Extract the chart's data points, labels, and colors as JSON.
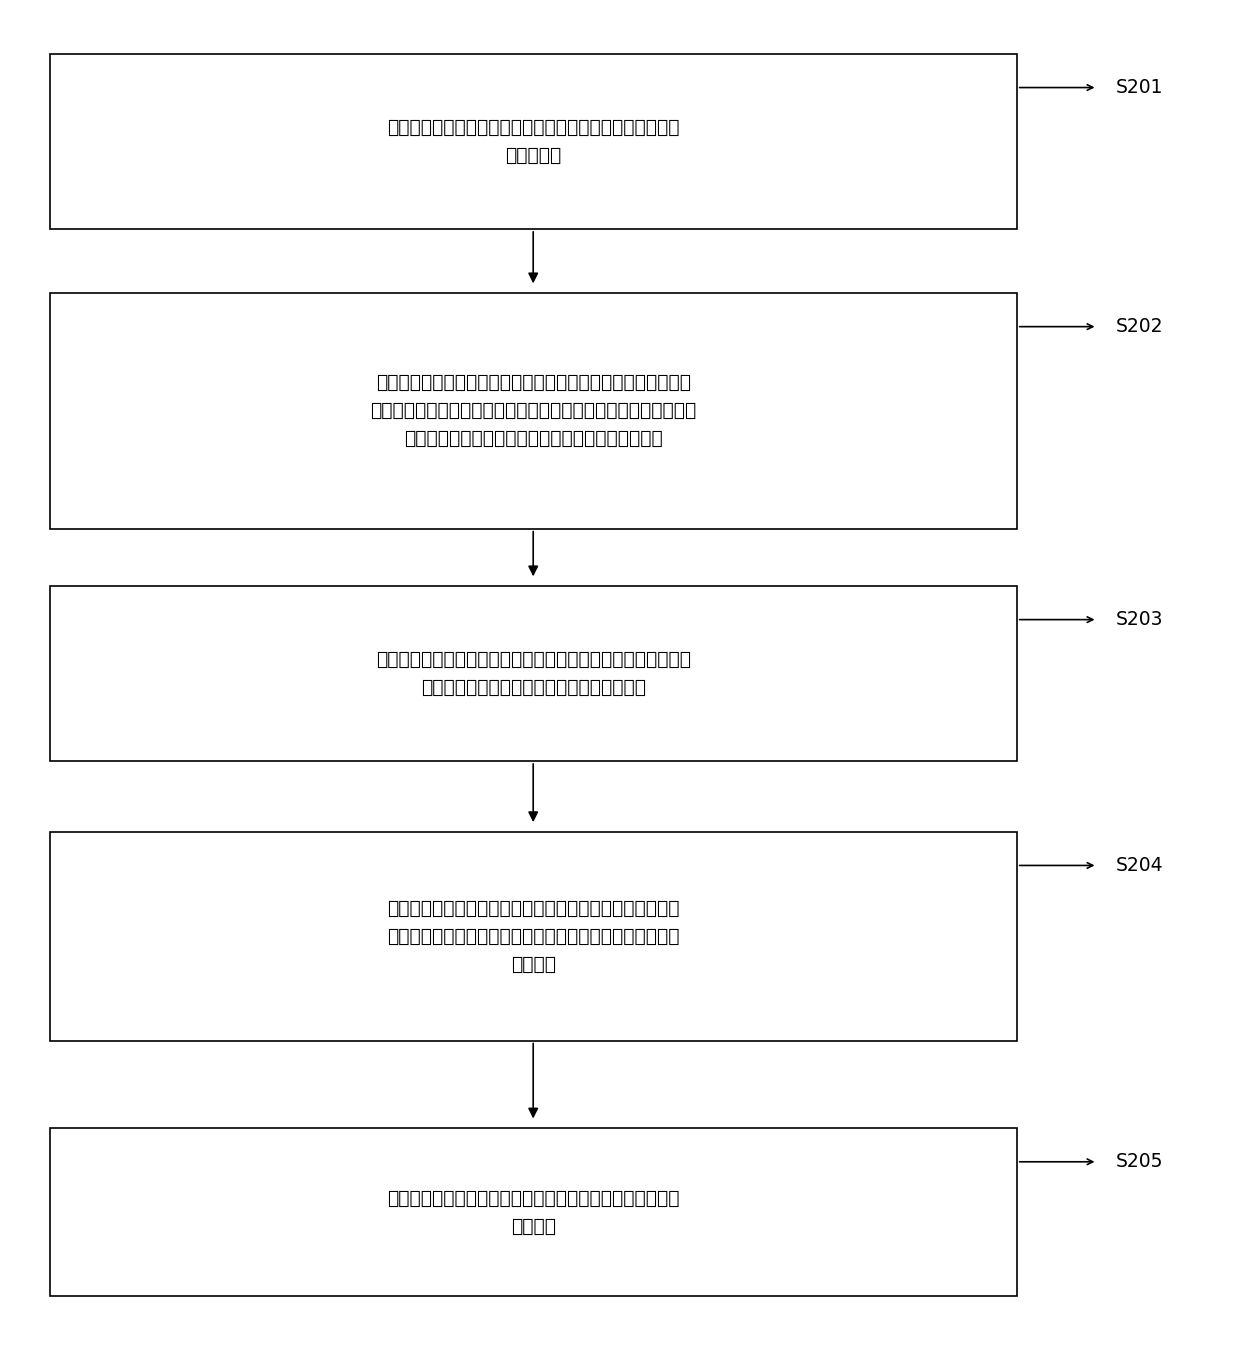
{
  "background_color": "#ffffff",
  "box_edge_color": "#000000",
  "box_fill_color": "#ffffff",
  "arrow_color": "#000000",
  "label_color": "#000000",
  "steps": [
    {
      "id": "S201",
      "text": "选取要变为折线的直线，并获取所述直线的起点坐标、终点\n坐标和长度",
      "label": "S201"
    },
    {
      "id": "S202",
      "text": "输入并获取预设的弯折角度和弯折线段的长度，根据所述起点坐\n标、终点坐标、直线长度、弯折角度和弯折线段的长度，基于定比\n分点公式求得各弯折点在所述直线上的投影点的坐标",
      "label": "S202"
    },
    {
      "id": "S203",
      "text": "根据所述起点坐标、所述直线上第一个投影点的坐标以及所述弯\n折角度，基于向量法求得第一个弯折点的坐标",
      "label": "S203"
    },
    {
      "id": "S204",
      "text": "根据所述第一个弯折点的坐标和所述各弯折点在所述直线上\n的投影点的坐标，依次基于定比分点公式逆向求得其余弯折\n点的坐标",
      "label": "S204"
    },
    {
      "id": "S205",
      "text": "根据所述各弯折点的坐标依次连接所述各弯折点以绘制出相\n应的折线",
      "label": "S205"
    }
  ],
  "figure_width": 12.4,
  "figure_height": 13.47,
  "dpi": 100
}
